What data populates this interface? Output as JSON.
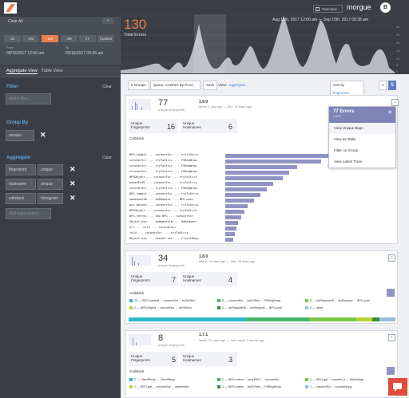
{
  "sidebar": {
    "clear_all": "Clear All",
    "range_tabs": [
      "1D",
      "1W",
      "1M",
      "3M",
      "1Y",
      "Custom"
    ],
    "active_range": "1M",
    "from_label": "From",
    "to_label": "To",
    "from_date": "08/15/2017 12:00 am",
    "to_date": "09/15/2017 09:35 am",
    "tab_aggregate": "Aggregate View",
    "tab_table": "Table View",
    "filter_title": "Filter",
    "filter_clear": "Clear",
    "filter_placeholder": "Add a filter...",
    "groupby_title": "Group By",
    "groupby_value": "version",
    "aggregate_title": "Aggregate",
    "aggregate_clear": "Clear",
    "aggregates": [
      {
        "field": "fingerprint",
        "op": "unique"
      },
      {
        "field": "hostname",
        "op": "unique"
      },
      {
        "field": "callstack",
        "op": "histogram"
      }
    ],
    "aggregate_placeholder": "Add aggregation..."
  },
  "header": {
    "overview_label": "Overview",
    "project": "morgue",
    "avatar": "B",
    "date_range": "Aug 15th, 2017 12:00 am  —  Sep 15th, 2017 09:35 am",
    "total_count": "130",
    "total_label": "Total Errors",
    "y_ticks": [
      "30",
      "25",
      "20",
      "15",
      "10",
      "5",
      "0"
    ],
    "accent": "#e8804a"
  },
  "toolbar": {
    "groups": "6 Groups",
    "query": "Query: Crashes By Prod...",
    "save": "Save",
    "view": "View:",
    "view_value": "aggregate",
    "sort": "Sort by",
    "sort_value": "fingerprint"
  },
  "group1": {
    "count": "77",
    "sub": "unique fingerprints",
    "version": "1.9.0",
    "latest": "latest: 1 day ago — first: 19 days ago",
    "fp_label": "Unique Fingerprints",
    "fp_value": "16",
    "host_label": "Unique Hostnames",
    "host_value": "6",
    "callstack_title": "Callstack",
    "rows": [
      {
        "text": "BPG.commit ... coroner5cr ... tryToStriz",
        "v": 100
      },
      {
        "text": "coroner5cr ... tryToStriz ... F5RegWrap.",
        "v": 60
      },
      {
        "text": "coroner5cr ... tryToStriz ... F5RegWrap.",
        "v": 45
      },
      {
        "text": "coroner5cr ... tryToStriz ... F5RegWrap.",
        "v": 40
      },
      {
        "text": "BPGObject ... coroner5cr ... tryToStriz",
        "v": 36
      },
      {
        "text": "padsHFsfB ... coroner5cr ... tryToStriz",
        "v": 30
      },
      {
        "text": "coroner5cr ... tryToStriz ... F5RegWrap.",
        "v": 26
      },
      {
        "text": "BPG.commit ... coroner5cr ... tryToStriz",
        "v": 22
      },
      {
        "text": "doRequestW ... doRequest ... BPG.post",
        "v": 18
      },
      {
        "text": "put_besums ... coroner5cr ... tryToStriz",
        "v": 14
      },
      {
        "text": "BPGObject ... coroner5cr ... tryToStriz",
        "v": 12
      },
      {
        "text": "BPG.refres ... new BPG ... coroner5cr",
        "v": 10
      },
      {
        "text": "Object.exp ... doRequestW ... doRequest",
        "v": 8
      },
      {
        "text": "err ... errs ... coroner5cr",
        "v": 7
      },
      {
        "text": "fold ... coroner5cr ... tryToStriz",
        "v": 6
      },
      {
        "text": "Object.exp ... Socket.set ... ClientRequ",
        "v": 5
      }
    ]
  },
  "dropdown": {
    "title": "77 Errors",
    "sub": "1.9.0",
    "items": [
      "View Unique Bugs",
      "View as Table",
      "Filter on Group",
      "View Latest Trace"
    ]
  },
  "group2": {
    "count": "34",
    "sub": "unique fingerprints",
    "version": "1.8.0",
    "latest": "latest: 19 days ago — first: 28 days ago",
    "fp_label": "Unique Fingerprints",
    "fp_value": "7",
    "host_label": "Unique Hostnames",
    "host_value": "4",
    "callstack_title": "Callstack",
    "legend": [
      {
        "text": "15 — BPG.commit ... coroner5cr ... tryToStrin",
        "color": "#2eb8c9"
      },
      {
        "text": "8 — coroner5cr ... tryToStrin ... F5RegWrap.",
        "color": "#44b86a"
      },
      {
        "text": "6 — doRequestW ... doRequest ... BPG.post",
        "color": "#7ac943"
      },
      {
        "text": "2 — BPGObject ... coroner5cr ... tryToStrin",
        "color": "#b5d334"
      },
      {
        "text": "1 — doRequestW ... doRequest ... BPG.post",
        "color": "#3a8a3a"
      },
      {
        "text": "2 — other",
        "color": "#9bd"
      }
    ]
  },
  "group3": {
    "count": "8",
    "sub": "unique fingerprints",
    "version": "1.7.1",
    "latest": "latest: 22 days ago — first: about 1 month ago",
    "fp_label": "Unique Fingerprints",
    "fp_value": "5",
    "host_label": "Unique Hostnames",
    "host_value": "3",
    "callstack_title": "Callstack",
    "legend": [
      {
        "text": "2 — ClientRequ ... ClientRequ",
        "color": "#2eb8c9"
      },
      {
        "text": "2 — BPG.refres ... new BPG ... coroner5cr",
        "color": "#44b86a"
      },
      {
        "text": "1 — BPG.get ... exports_e ... WriteWrap",
        "color": "#7ac943"
      },
      {
        "text": "1 — BPG.get ... coroner5cr ... assembler",
        "color": "#b5d334"
      },
      {
        "text": "1 — BPG.refres ... tryToStrin ... F5RegWrap.",
        "color": "#3a8a3a"
      },
      {
        "text": "1 — coroner5cr ... coroner5cpg",
        "color": "#9bd"
      }
    ]
  }
}
